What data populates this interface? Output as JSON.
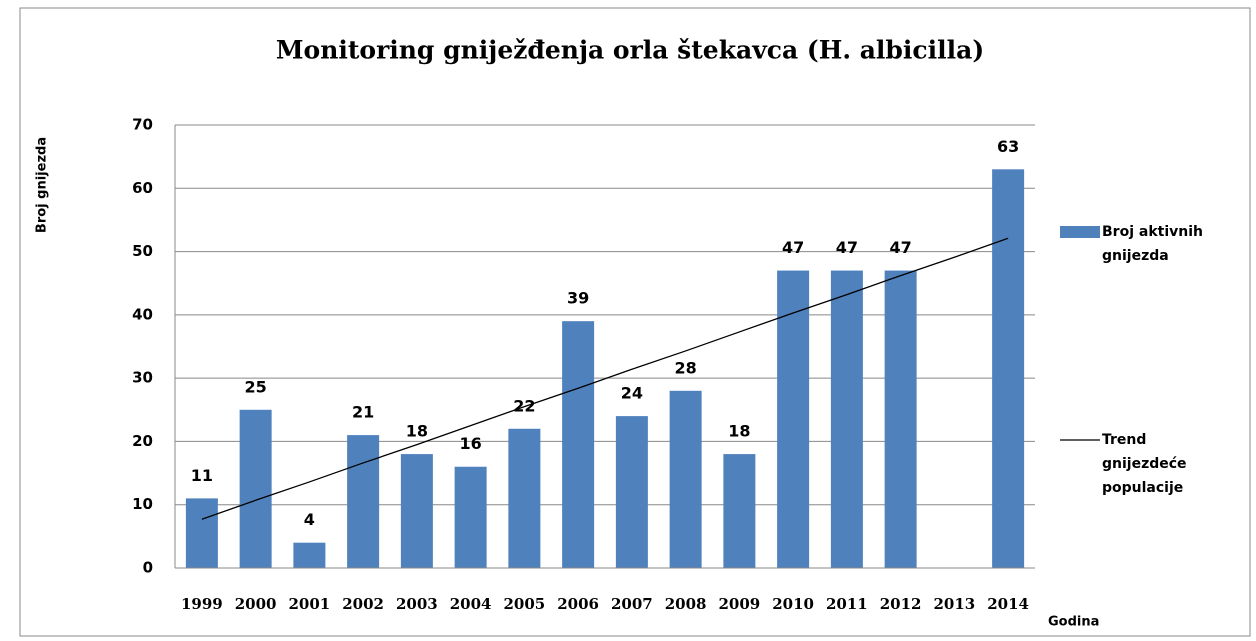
{
  "chart_data": {
    "type": "bar",
    "title": "Monitoring gniježđenja orla štekavca (H. albicilla)",
    "y_label": "Broj gnijezda",
    "x_label": "Godina",
    "categories": [
      "1999",
      "2000",
      "2001",
      "2002",
      "2003",
      "2004",
      "2005",
      "2006",
      "2007",
      "2008",
      "2009",
      "2010",
      "2011",
      "2012",
      "2013",
      "2014"
    ],
    "series": [
      {
        "name": "Broj aktivnih gnijezda",
        "type": "bar",
        "color": "#4f81bd",
        "values": [
          11,
          25,
          4,
          21,
          18,
          16,
          22,
          39,
          24,
          28,
          18,
          47,
          47,
          47,
          null,
          63
        ]
      },
      {
        "name": "Trend gnijezdeće populacije",
        "type": "line",
        "color": "#000000",
        "values": [
          7.7,
          10.7,
          13.6,
          16.6,
          19.5,
          22.5,
          25.5,
          28.4,
          31.4,
          34.3,
          37.3,
          40.3,
          43.2,
          46.2,
          49.1,
          52.1
        ]
      }
    ],
    "ylim": [
      0,
      70
    ],
    "yticks": [
      0,
      10,
      20,
      30,
      40,
      50,
      60,
      70
    ],
    "grid": true,
    "legend": "right"
  }
}
